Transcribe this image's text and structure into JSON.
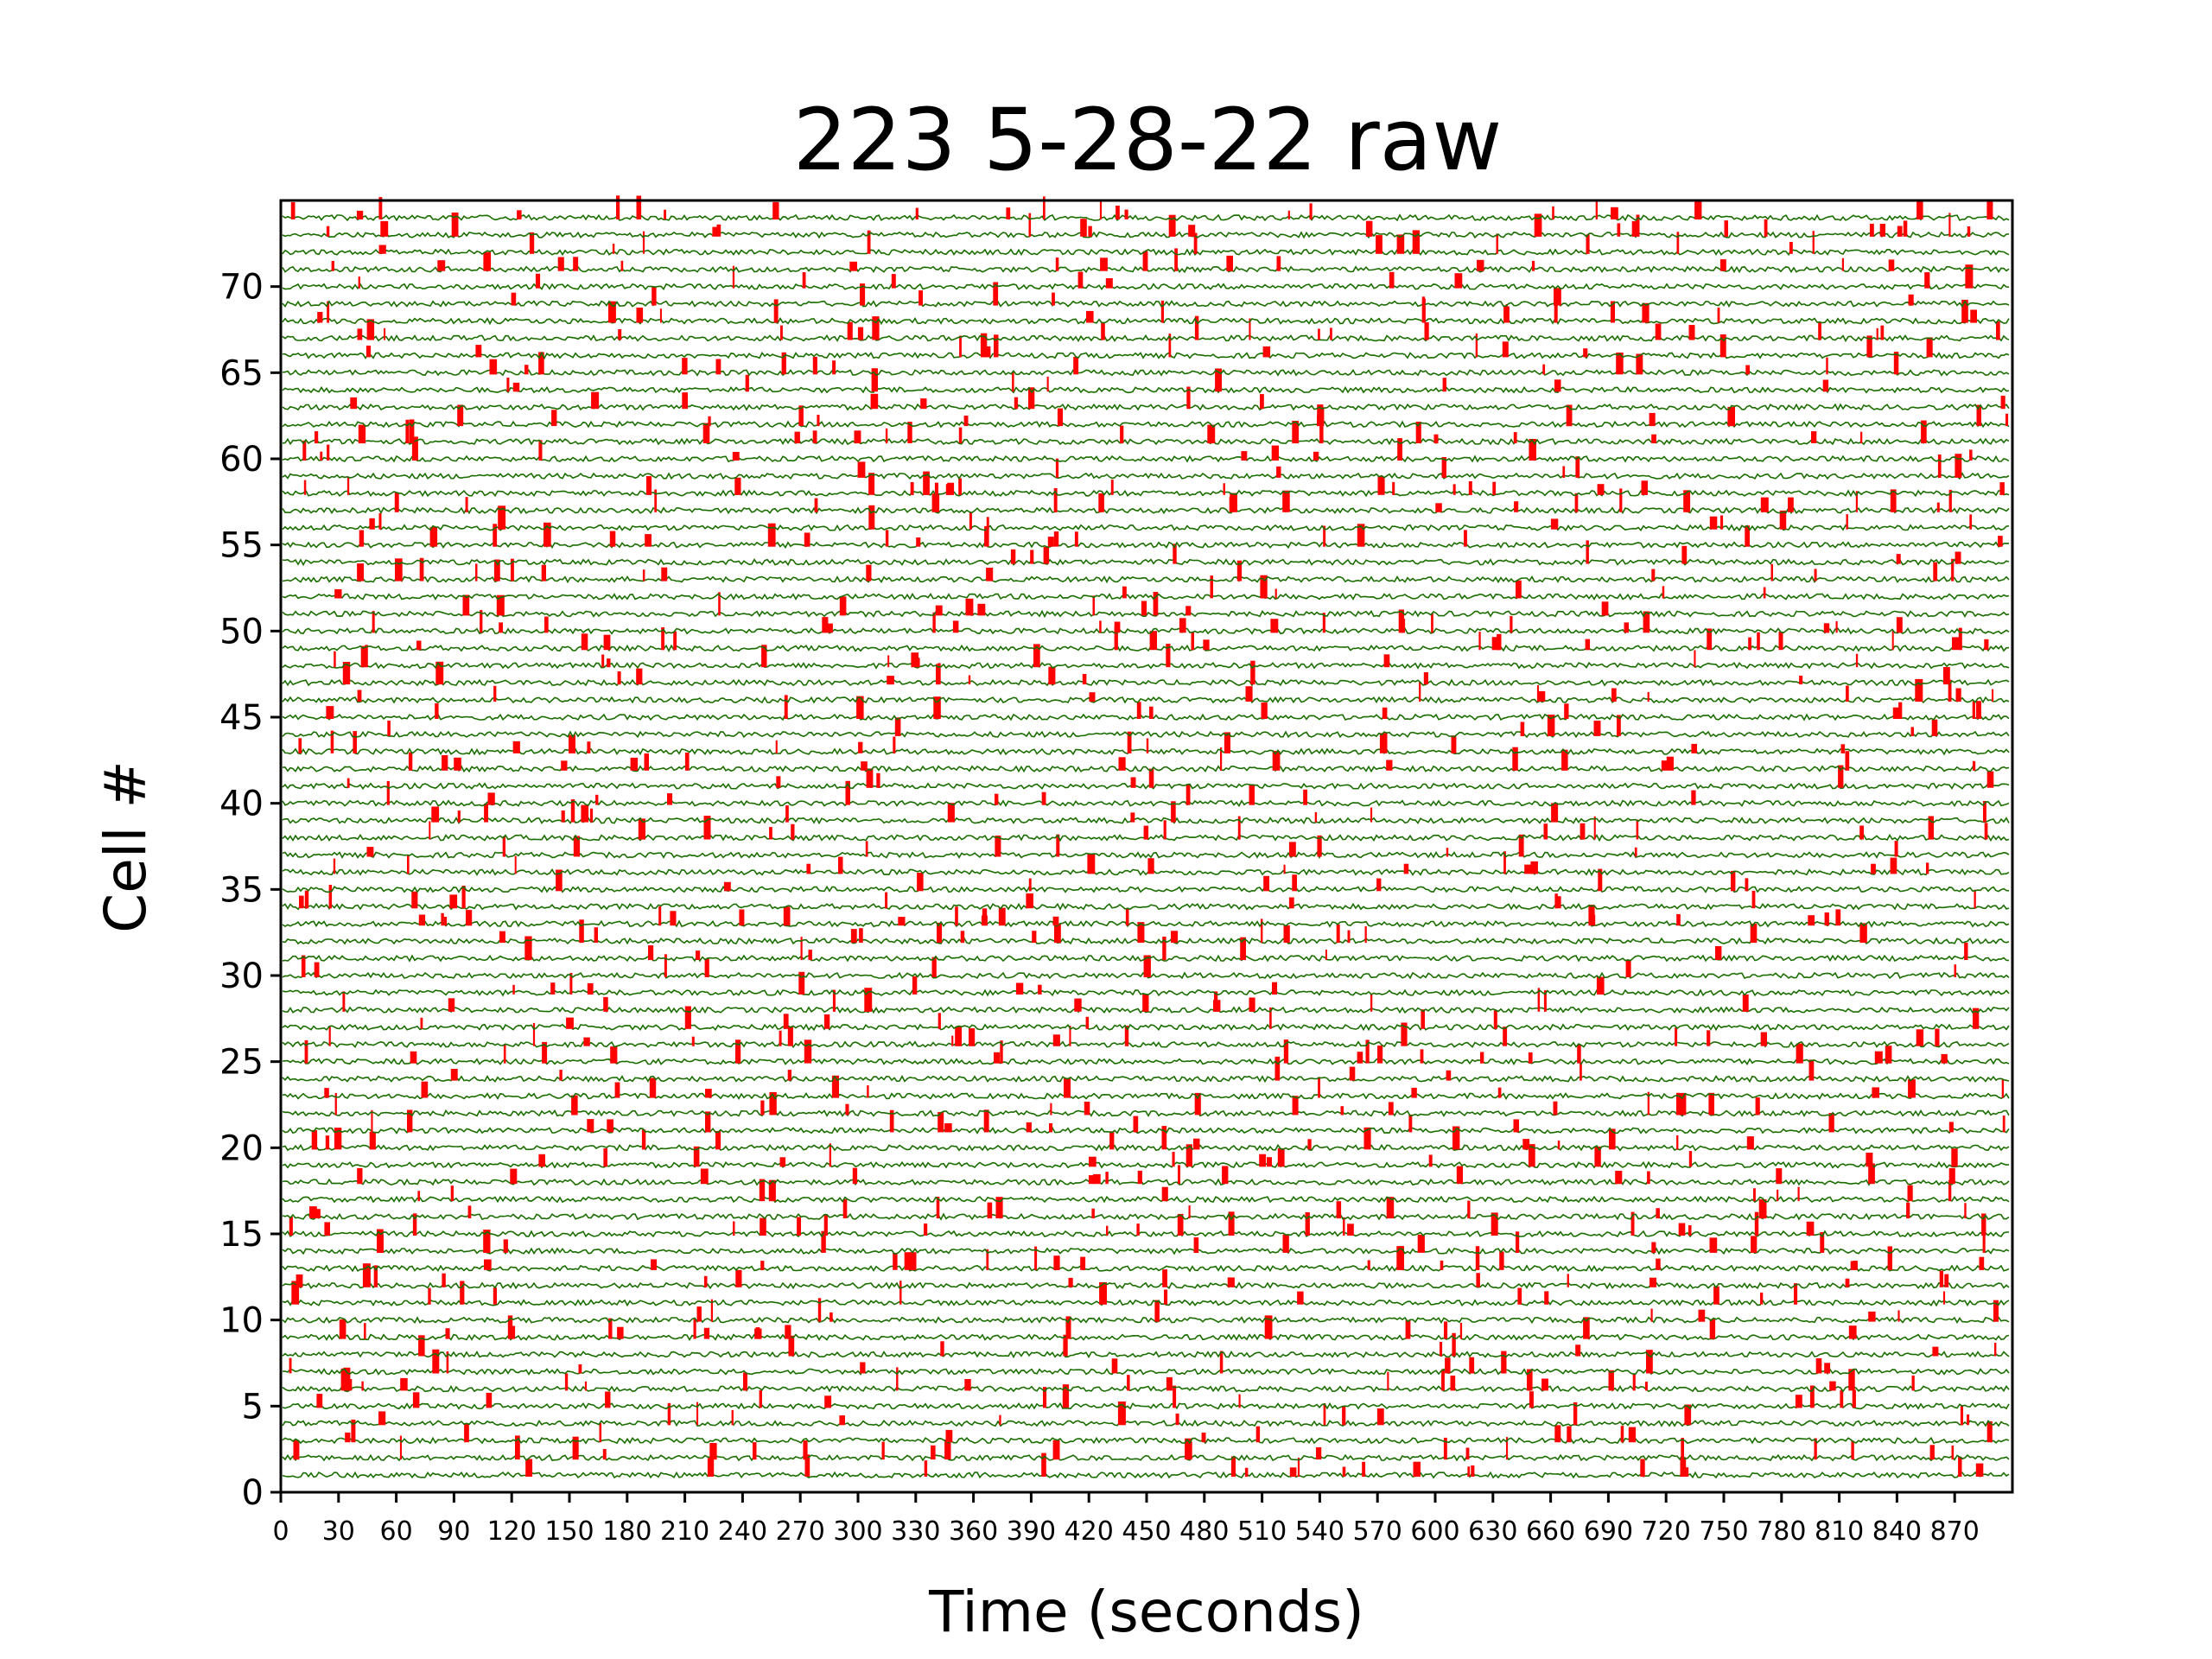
{
  "chart_data": {
    "type": "line",
    "title": "223  5-28-22 raw",
    "xlabel": "Time (seconds)",
    "ylabel": "Cell #",
    "xlim": [
      0,
      900
    ],
    "ylim": [
      0,
      75
    ],
    "xticks": [
      0,
      30,
      60,
      90,
      120,
      150,
      180,
      210,
      240,
      270,
      300,
      330,
      360,
      390,
      420,
      450,
      480,
      510,
      540,
      570,
      600,
      630,
      660,
      690,
      720,
      750,
      780,
      810,
      840,
      870
    ],
    "yticks": [
      0,
      5,
      10,
      15,
      20,
      25,
      30,
      35,
      40,
      45,
      50,
      55,
      60,
      65,
      70
    ],
    "n_cells": 74,
    "grid": false,
    "legend": "none",
    "series": [
      {
        "color": "#1a6e00",
        "values": "raw fluorescence trace per cell, offset by cell index (1 to 74)"
      },
      {
        "color": "#ff0000",
        "values": "detected transient events overlaid on each trace"
      }
    ],
    "colors": {
      "trace": "#1a6e00",
      "event": "#ff0000",
      "axis": "#000000",
      "background": "#ffffff"
    }
  }
}
